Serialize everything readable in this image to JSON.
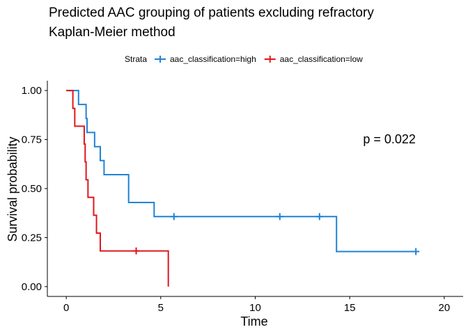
{
  "chart_data": {
    "type": "line",
    "title": "Predicted AAC grouping of patients excluding refractory",
    "subtitle": "Kaplan-Meier method",
    "xlabel": "Time",
    "ylabel": "Survival probability",
    "xlim": [
      -1,
      21
    ],
    "ylim": [
      -0.05,
      1.05
    ],
    "xticks": [
      0,
      5,
      10,
      15,
      20
    ],
    "xtick_labels": [
      "0",
      "5",
      "10",
      "15",
      "20"
    ],
    "yticks": [
      0,
      0.25,
      0.5,
      0.75,
      1.0
    ],
    "ytick_labels": [
      "0.00",
      "0.25",
      "0.50",
      "0.75",
      "1.00"
    ],
    "grid": false,
    "legend": {
      "title": "Strata",
      "placement": "top"
    },
    "annotation": "p = 0.022",
    "annotation_position": {
      "x": 17.1,
      "y": 0.73
    },
    "series": [
      {
        "name": "aac_classification=high",
        "color": "#1f82d6",
        "step_points": [
          [
            0,
            1.0
          ],
          [
            0.65,
            1.0
          ],
          [
            0.65,
            0.929
          ],
          [
            1.05,
            0.929
          ],
          [
            1.05,
            0.857
          ],
          [
            1.1,
            0.857
          ],
          [
            1.1,
            0.786
          ],
          [
            1.5,
            0.786
          ],
          [
            1.5,
            0.714
          ],
          [
            1.8,
            0.714
          ],
          [
            1.8,
            0.643
          ],
          [
            2.0,
            0.643
          ],
          [
            2.0,
            0.571
          ],
          [
            3.3,
            0.571
          ],
          [
            3.3,
            0.429
          ],
          [
            4.65,
            0.429
          ],
          [
            4.65,
            0.357
          ],
          [
            14.3,
            0.357
          ],
          [
            14.3,
            0.179
          ],
          [
            18.5,
            0.179
          ]
        ],
        "censored": [
          [
            5.7,
            0.357
          ],
          [
            11.3,
            0.357
          ],
          [
            13.4,
            0.357
          ],
          [
            18.5,
            0.179
          ]
        ]
      },
      {
        "name": "aac_classification=low",
        "color": "#e0161b",
        "step_points": [
          [
            0,
            1.0
          ],
          [
            0.35,
            1.0
          ],
          [
            0.35,
            0.909
          ],
          [
            0.45,
            0.909
          ],
          [
            0.45,
            0.818
          ],
          [
            0.95,
            0.818
          ],
          [
            0.95,
            0.727
          ],
          [
            1.0,
            0.727
          ],
          [
            1.0,
            0.636
          ],
          [
            1.05,
            0.636
          ],
          [
            1.05,
            0.545
          ],
          [
            1.15,
            0.545
          ],
          [
            1.15,
            0.455
          ],
          [
            1.45,
            0.455
          ],
          [
            1.45,
            0.364
          ],
          [
            1.6,
            0.364
          ],
          [
            1.6,
            0.273
          ],
          [
            1.8,
            0.273
          ],
          [
            1.8,
            0.182
          ],
          [
            5.4,
            0.182
          ],
          [
            5.4,
            0.0
          ]
        ],
        "censored": [
          [
            3.7,
            0.182
          ]
        ]
      }
    ]
  }
}
